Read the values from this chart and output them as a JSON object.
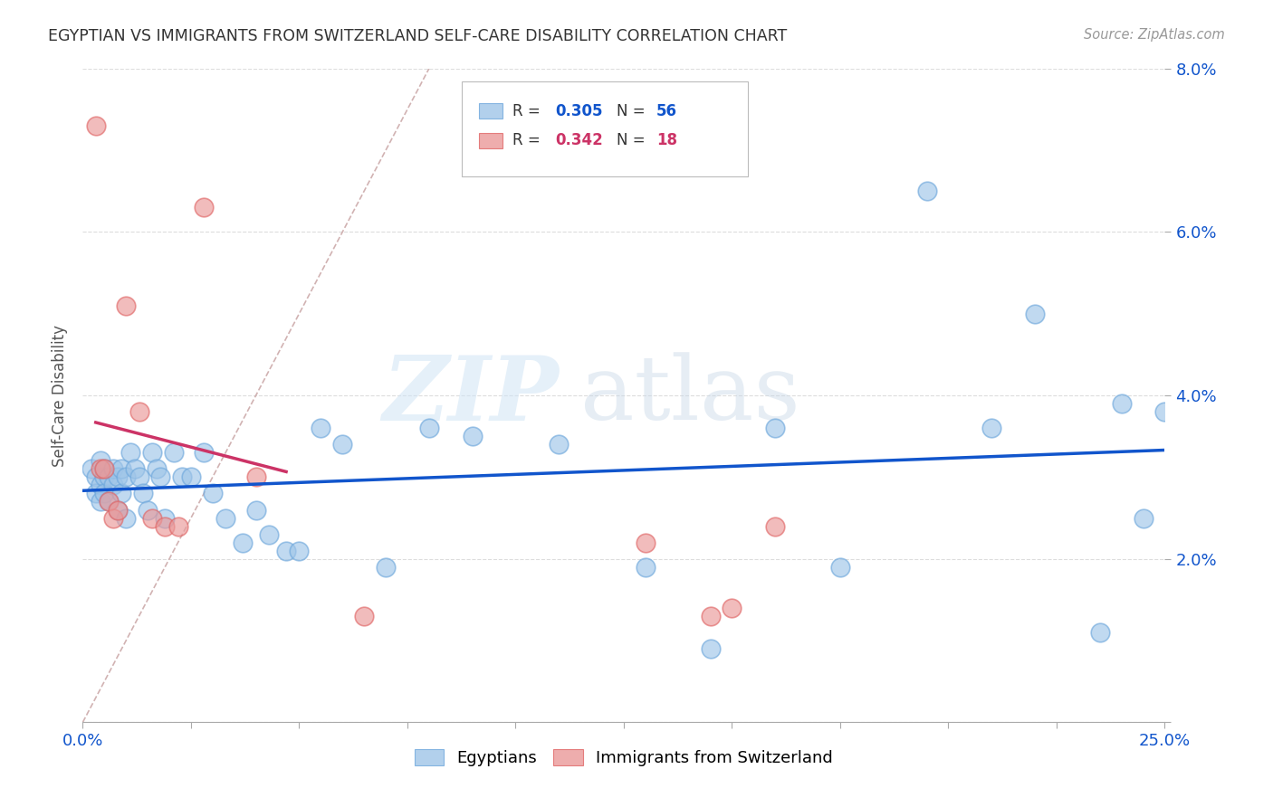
{
  "title": "EGYPTIAN VS IMMIGRANTS FROM SWITZERLAND SELF-CARE DISABILITY CORRELATION CHART",
  "source": "Source: ZipAtlas.com",
  "ylabel": "Self-Care Disability",
  "xlim": [
    0,
    0.25
  ],
  "ylim": [
    0,
    0.08
  ],
  "xticks": [
    0.0,
    0.025,
    0.05,
    0.075,
    0.1,
    0.125,
    0.15,
    0.175,
    0.2,
    0.225,
    0.25
  ],
  "yticks": [
    0.0,
    0.02,
    0.04,
    0.06,
    0.08
  ],
  "blue_color": "#9fc5e8",
  "blue_edge_color": "#6fa8dc",
  "pink_color": "#ea9999",
  "pink_edge_color": "#e06666",
  "blue_line_color": "#1155cc",
  "pink_line_color": "#cc3366",
  "diag_line_color": "#ccaaaa",
  "watermark_zip": "ZIP",
  "watermark_atlas": "atlas",
  "legend_r1": "0.305",
  "legend_n1": "56",
  "legend_r2": "0.342",
  "legend_n2": "18",
  "blue_x": [
    0.002,
    0.003,
    0.003,
    0.004,
    0.004,
    0.004,
    0.005,
    0.005,
    0.005,
    0.006,
    0.006,
    0.007,
    0.007,
    0.008,
    0.008,
    0.009,
    0.009,
    0.01,
    0.01,
    0.011,
    0.012,
    0.013,
    0.014,
    0.015,
    0.016,
    0.017,
    0.018,
    0.019,
    0.021,
    0.023,
    0.025,
    0.028,
    0.03,
    0.033,
    0.037,
    0.04,
    0.043,
    0.047,
    0.05,
    0.055,
    0.06,
    0.07,
    0.08,
    0.09,
    0.11,
    0.13,
    0.145,
    0.16,
    0.175,
    0.195,
    0.21,
    0.22,
    0.235,
    0.24,
    0.245,
    0.25
  ],
  "blue_y": [
    0.031,
    0.03,
    0.028,
    0.032,
    0.029,
    0.027,
    0.03,
    0.031,
    0.028,
    0.03,
    0.027,
    0.029,
    0.031,
    0.03,
    0.026,
    0.031,
    0.028,
    0.03,
    0.025,
    0.033,
    0.031,
    0.03,
    0.028,
    0.026,
    0.033,
    0.031,
    0.03,
    0.025,
    0.033,
    0.03,
    0.03,
    0.033,
    0.028,
    0.025,
    0.022,
    0.026,
    0.023,
    0.021,
    0.021,
    0.036,
    0.034,
    0.019,
    0.036,
    0.035,
    0.034,
    0.019,
    0.009,
    0.036,
    0.019,
    0.065,
    0.036,
    0.05,
    0.011,
    0.039,
    0.025,
    0.038
  ],
  "pink_x": [
    0.003,
    0.004,
    0.005,
    0.006,
    0.007,
    0.008,
    0.01,
    0.013,
    0.016,
    0.019,
    0.022,
    0.028,
    0.04,
    0.065,
    0.13,
    0.145,
    0.15,
    0.16
  ],
  "pink_y": [
    0.073,
    0.031,
    0.031,
    0.027,
    0.025,
    0.026,
    0.051,
    0.038,
    0.025,
    0.024,
    0.024,
    0.063,
    0.03,
    0.013,
    0.022,
    0.013,
    0.014,
    0.024
  ]
}
